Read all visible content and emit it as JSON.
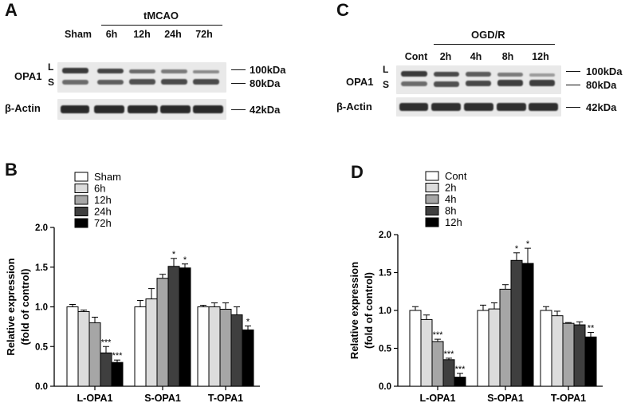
{
  "panels": {
    "A": {
      "letter": "A",
      "group_label": "tMCAO",
      "lanes": [
        "Sham",
        "6h",
        "12h",
        "24h",
        "72h"
      ],
      "row_label": "OPA1",
      "long_label": "L",
      "short_label": "S",
      "actin_label": "β-Actin",
      "markers": [
        "100kDa",
        "80kDa",
        "42kDa"
      ]
    },
    "C": {
      "letter": "C",
      "group_label": "OGD/R",
      "lanes": [
        "Cont",
        "2h",
        "4h",
        "8h",
        "12h"
      ],
      "row_label": "OPA1",
      "long_label": "L",
      "short_label": "S",
      "actin_label": "β-Actin",
      "markers": [
        "100kDa",
        "80kDa",
        "42kDa"
      ]
    },
    "B": {
      "letter": "B"
    },
    "D": {
      "letter": "D"
    }
  },
  "chart_data": [
    {
      "type": "bar",
      "panel": "B",
      "categories": [
        "L-OPA1",
        "S-OPA1",
        "T-OPA1"
      ],
      "ylabel_lines": [
        "Relative expression",
        "(fold of control)"
      ],
      "ylim": [
        0,
        2.0
      ],
      "yticks": [
        "0.0",
        "0.5",
        "1.0",
        "1.5",
        "2.0"
      ],
      "legend_position": "top-left",
      "series": [
        {
          "name": "Sham",
          "color": "#ffffff",
          "values": [
            1.0,
            1.0,
            1.0
          ],
          "errors": [
            0.03,
            0.08,
            0.02
          ],
          "stars": [
            "",
            "",
            ""
          ]
        },
        {
          "name": "6h",
          "color": "#dcdcdc",
          "values": [
            0.94,
            1.1,
            1.0
          ],
          "errors": [
            0.02,
            0.13,
            0.05
          ],
          "stars": [
            "",
            "",
            ""
          ]
        },
        {
          "name": "12h",
          "color": "#a6a6a6",
          "values": [
            0.8,
            1.36,
            0.97
          ],
          "errors": [
            0.07,
            0.05,
            0.08
          ],
          "stars": [
            "",
            "",
            ""
          ]
        },
        {
          "name": "24h",
          "color": "#3f3f3f",
          "values": [
            0.42,
            1.51,
            0.9
          ],
          "errors": [
            0.08,
            0.1,
            0.1
          ],
          "stars": [
            "***",
            "*",
            ""
          ]
        },
        {
          "name": "72h",
          "color": "#000000",
          "values": [
            0.3,
            1.49,
            0.71
          ],
          "errors": [
            0.03,
            0.05,
            0.05
          ],
          "stars": [
            "***",
            "*",
            "*"
          ]
        }
      ]
    },
    {
      "type": "bar",
      "panel": "D",
      "categories": [
        "L-OPA1",
        "S-OPA1",
        "T-OPA1"
      ],
      "ylabel_lines": [
        "Relative expression",
        "(fold of control)"
      ],
      "ylim": [
        0,
        2.0
      ],
      "yticks": [
        "0.0",
        "0.5",
        "1.0",
        "1.5",
        "2.0"
      ],
      "legend_position": "top-left",
      "series": [
        {
          "name": "Cont",
          "color": "#ffffff",
          "values": [
            1.0,
            1.0,
            1.0
          ],
          "errors": [
            0.05,
            0.07,
            0.05
          ],
          "stars": [
            "",
            "",
            ""
          ]
        },
        {
          "name": "2h",
          "color": "#dcdcdc",
          "values": [
            0.88,
            1.02,
            0.93
          ],
          "errors": [
            0.06,
            0.08,
            0.06
          ],
          "stars": [
            "",
            "",
            ""
          ]
        },
        {
          "name": "4h",
          "color": "#a6a6a6",
          "values": [
            0.59,
            1.28,
            0.83
          ],
          "errors": [
            0.03,
            0.06,
            0.01
          ],
          "stars": [
            "***",
            "",
            ""
          ]
        },
        {
          "name": "8h",
          "color": "#3f3f3f",
          "values": [
            0.35,
            1.66,
            0.81
          ],
          "errors": [
            0.02,
            0.1,
            0.04
          ],
          "stars": [
            "***",
            "*",
            ""
          ]
        },
        {
          "name": "12h",
          "color": "#000000",
          "values": [
            0.12,
            1.62,
            0.65
          ],
          "errors": [
            0.05,
            0.2,
            0.06
          ],
          "stars": [
            "***",
            "*",
            "**"
          ]
        }
      ]
    }
  ]
}
